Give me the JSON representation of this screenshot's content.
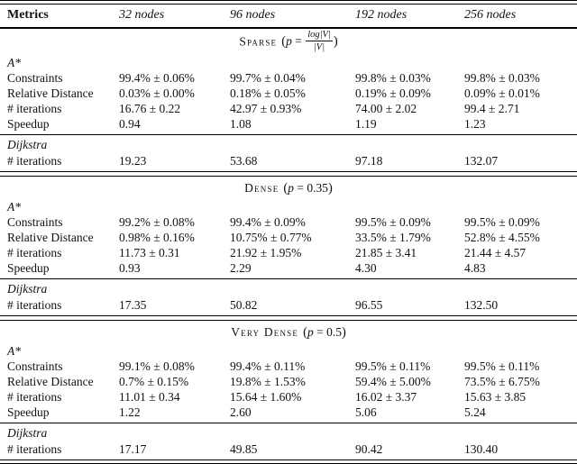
{
  "table": {
    "header": {
      "metrics_label": "Metrics",
      "columns": [
        "32 nodes",
        "96 nodes",
        "192 nodes",
        "256 nodes"
      ]
    },
    "sections": [
      {
        "title": "Sparse",
        "param_parts": {
          "open": "(",
          "var": "p",
          "eq": "=",
          "close": ")"
        },
        "param_frac": {
          "num": "log|V|",
          "den": "|V|"
        },
        "groups": [
          {
            "name": "A*",
            "rows": [
              {
                "label": "Constraints",
                "values": [
                  "99.4% ± 0.06%",
                  "99.7% ± 0.04%",
                  "99.8% ± 0.03%",
                  "99.8% ± 0.03%"
                ]
              },
              {
                "label": "Relative Distance",
                "values": [
                  "0.03% ± 0.00%",
                  "0.18% ± 0.05%",
                  "0.19% ± 0.09%",
                  "0.09% ± 0.01%"
                ]
              },
              {
                "label": "# iterations",
                "values": [
                  "16.76 ± 0.22",
                  "42.97 ± 0.93%",
                  "74.00 ± 2.02",
                  "99.4 ± 2.71"
                ]
              },
              {
                "label": "Speedup",
                "values": [
                  "0.94",
                  "1.08",
                  "1.19",
                  "1.23"
                ]
              }
            ]
          },
          {
            "name": "Dijkstra",
            "rows": [
              {
                "label": "# iterations",
                "values": [
                  "19.23",
                  "53.68",
                  "97.18",
                  "132.07"
                ]
              }
            ]
          }
        ]
      },
      {
        "title": "Dense",
        "param_parts": {
          "open": "(",
          "var": "p",
          "eq": "=",
          "value": "0.35",
          "close": ")"
        },
        "groups": [
          {
            "name": "A*",
            "rows": [
              {
                "label": "Constraints",
                "values": [
                  "99.2% ± 0.08%",
                  "99.4% ± 0.09%",
                  "99.5% ± 0.09%",
                  "99.5% ± 0.09%"
                ]
              },
              {
                "label": "Relative Distance",
                "values": [
                  "0.98% ± 0.16%",
                  "10.75% ± 0.77%",
                  "33.5% ± 1.79%",
                  "52.8% ± 4.55%"
                ]
              },
              {
                "label": "# iterations",
                "values": [
                  "11.73 ± 0.31",
                  "21.92 ± 1.95%",
                  "21.85 ± 3.41",
                  "21.44 ± 4.57"
                ]
              },
              {
                "label": "Speedup",
                "values": [
                  "0.93",
                  "2.29",
                  "4.30",
                  "4.83"
                ]
              }
            ]
          },
          {
            "name": "Dijkstra",
            "rows": [
              {
                "label": "# iterations",
                "values": [
                  "17.35",
                  "50.82",
                  "96.55",
                  "132.50"
                ]
              }
            ]
          }
        ]
      },
      {
        "title": "Very Dense",
        "param_parts": {
          "open": "(",
          "var": "p",
          "eq": "=",
          "value": "0.5",
          "close": ")"
        },
        "groups": [
          {
            "name": "A*",
            "rows": [
              {
                "label": "Constraints",
                "values": [
                  "99.1% ± 0.08%",
                  "99.4% ± 0.11%",
                  "99.5% ± 0.11%",
                  "99.5% ± 0.11%"
                ]
              },
              {
                "label": "Relative Distance",
                "values": [
                  "0.7% ± 0.15%",
                  "19.8% ± 1.53%",
                  "59.4% ± 5.00%",
                  "73.5% ± 6.75%"
                ]
              },
              {
                "label": "# iterations",
                "values": [
                  "11.01 ± 0.34",
                  "15.64 ± 1.60%",
                  "16.02 ± 3.37",
                  "15.63 ± 3.85"
                ]
              },
              {
                "label": "Speedup",
                "values": [
                  "1.22",
                  "2.60",
                  "5.06",
                  "5.24"
                ]
              }
            ]
          },
          {
            "name": "Dijkstra",
            "rows": [
              {
                "label": "# iterations",
                "values": [
                  "17.17",
                  "49.85",
                  "90.42",
                  "130.40"
                ]
              }
            ]
          }
        ]
      }
    ]
  }
}
